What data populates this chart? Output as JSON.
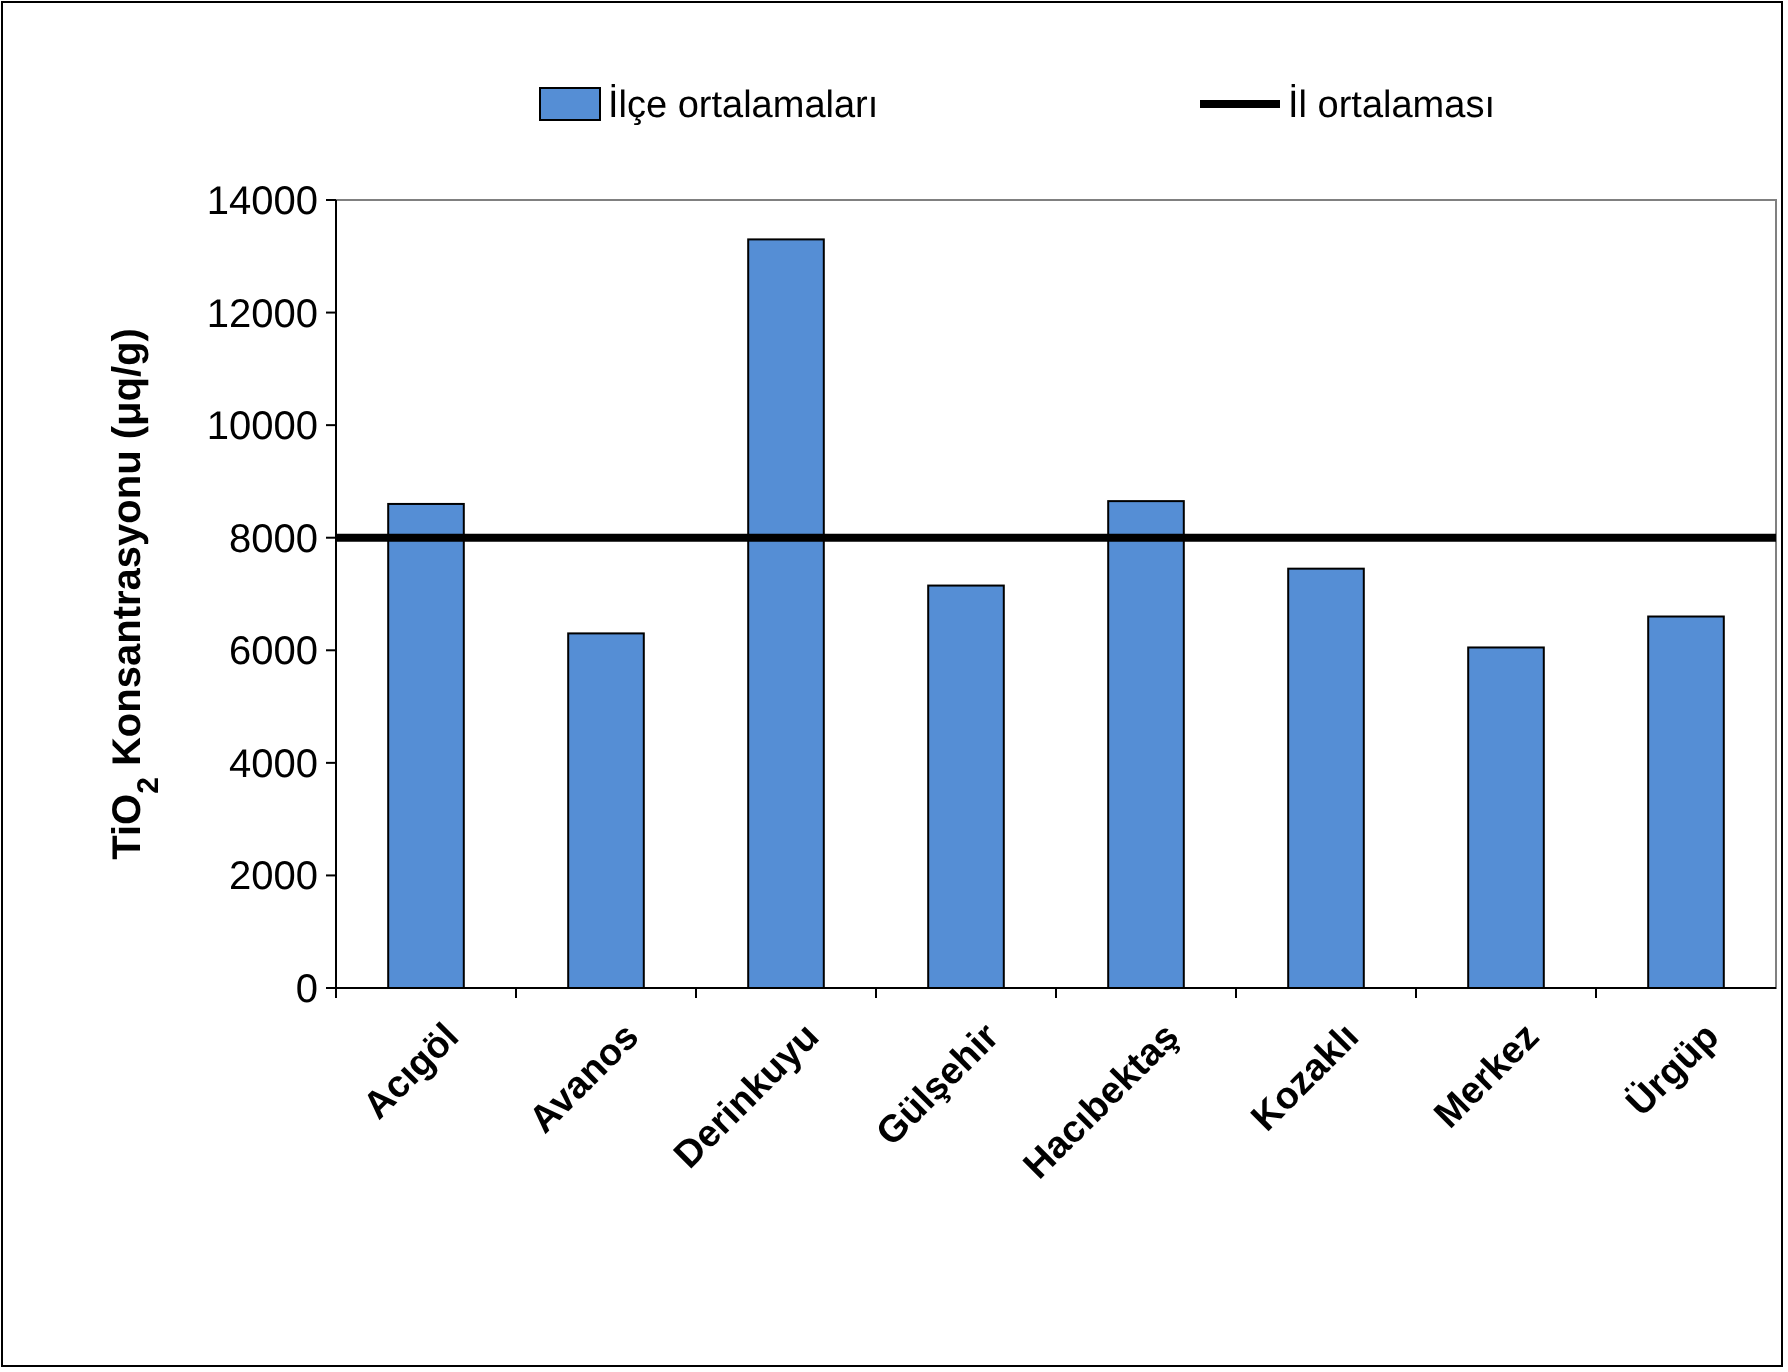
{
  "chart_data": {
    "type": "bar",
    "ylabel": "TiO$_{2}$ Konsantrasyonu (μq/g)",
    "categories": [
      "Acıgöl",
      "Avanos",
      "Derinkuyu",
      "Gülşehir",
      "Hacıbektaş",
      "Kozaklı",
      "Merkez",
      "Ürgüp"
    ],
    "series": [
      {
        "name": "İlçe ortalamaları",
        "color": "#558ed5",
        "values": [
          8600,
          6300,
          13300,
          7150,
          8650,
          7450,
          6050,
          6600
        ]
      }
    ],
    "ylim": [
      0,
      14000
    ],
    "yticks": [
      0,
      2000,
      4000,
      6000,
      8000,
      10000,
      12000,
      14000
    ],
    "ref_lines": [
      {
        "axis": "y",
        "value": 8000,
        "label": "İl ortalaması",
        "color": "#000000",
        "line_style": "solid"
      }
    ],
    "legend": "top",
    "grid": false
  }
}
